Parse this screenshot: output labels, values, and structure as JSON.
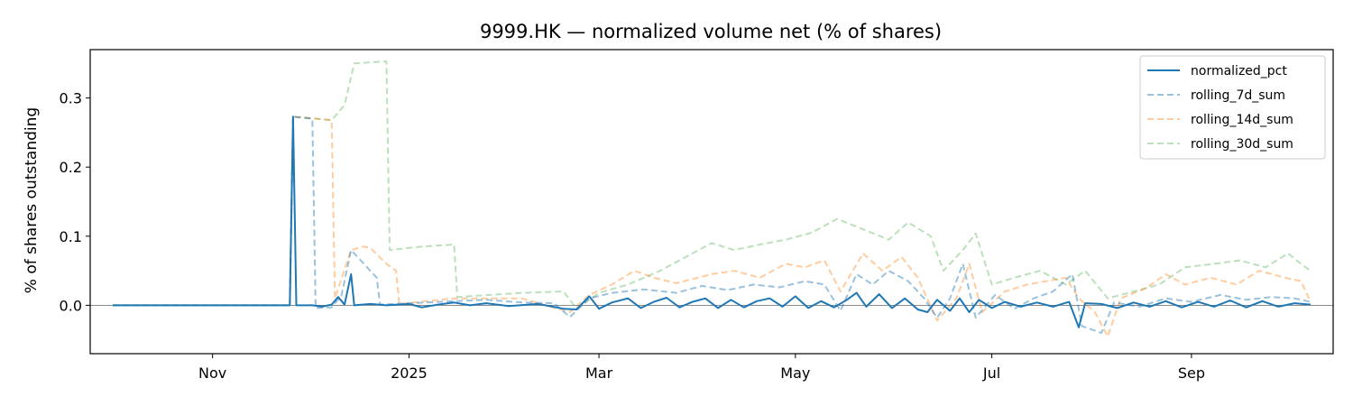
{
  "chart_data": {
    "type": "line",
    "title": "9999.HK — normalized volume net (% of shares)",
    "xlabel": "",
    "ylabel": "% of shares outstanding",
    "x_range": [
      "2024-09-24",
      "2025-10-15"
    ],
    "ylim": [
      -0.07,
      0.37
    ],
    "x_ticks": [
      {
        "label": "Nov",
        "date": "2024-11-01"
      },
      {
        "label": "2025",
        "date": "2025-01-01"
      },
      {
        "label": "Mar",
        "date": "2025-03-01"
      },
      {
        "label": "May",
        "date": "2025-05-01"
      },
      {
        "label": "Jul",
        "date": "2025-07-01"
      },
      {
        "label": "Sep",
        "date": "2025-09-01"
      }
    ],
    "y_ticks": [
      "0.0",
      "0.1",
      "0.2",
      "0.3"
    ],
    "zero_line": true,
    "grid": false,
    "legend_position": "top-right",
    "series": [
      {
        "name": "normalized_pct",
        "color": "#1f77b4",
        "style": "solid",
        "opacity": 1,
        "points": [
          [
            "2024-10-01",
            0
          ],
          [
            "2024-11-25",
            0
          ],
          [
            "2024-11-26",
            0.273
          ],
          [
            "2024-11-27",
            0
          ],
          [
            "2024-12-02",
            0
          ],
          [
            "2024-12-05",
            -0.002
          ],
          [
            "2024-12-08",
            0.001
          ],
          [
            "2024-12-10",
            0.012
          ],
          [
            "2024-12-12",
            0.001
          ],
          [
            "2024-12-14",
            0.045
          ],
          [
            "2024-12-15",
            0
          ],
          [
            "2024-12-20",
            0.002
          ],
          [
            "2024-12-25",
            0
          ],
          [
            "2025-01-01",
            0.002
          ],
          [
            "2025-01-05",
            -0.003
          ],
          [
            "2025-01-10",
            0.001
          ],
          [
            "2025-01-15",
            0.004
          ],
          [
            "2025-01-20",
            0
          ],
          [
            "2025-01-25",
            0.003
          ],
          [
            "2025-02-01",
            -0.001
          ],
          [
            "2025-02-10",
            0.002
          ],
          [
            "2025-02-18",
            -0.005
          ],
          [
            "2025-02-22",
            -0.006
          ],
          [
            "2025-02-26",
            0.013
          ],
          [
            "2025-03-01",
            -0.005
          ],
          [
            "2025-03-05",
            0.004
          ],
          [
            "2025-03-10",
            0.01
          ],
          [
            "2025-03-14",
            -0.004
          ],
          [
            "2025-03-18",
            0.005
          ],
          [
            "2025-03-22",
            0.011
          ],
          [
            "2025-03-26",
            -0.003
          ],
          [
            "2025-03-30",
            0.005
          ],
          [
            "2025-04-03",
            0.01
          ],
          [
            "2025-04-07",
            -0.004
          ],
          [
            "2025-04-11",
            0.008
          ],
          [
            "2025-04-15",
            -0.003
          ],
          [
            "2025-04-19",
            0.006
          ],
          [
            "2025-04-23",
            0.01
          ],
          [
            "2025-04-27",
            -0.002
          ],
          [
            "2025-05-01",
            0.013
          ],
          [
            "2025-05-05",
            -0.004
          ],
          [
            "2025-05-09",
            0.006
          ],
          [
            "2025-05-13",
            -0.003
          ],
          [
            "2025-05-17",
            0.008
          ],
          [
            "2025-05-20",
            0.018
          ],
          [
            "2025-05-23",
            -0.002
          ],
          [
            "2025-05-27",
            0.016
          ],
          [
            "2025-05-31",
            -0.004
          ],
          [
            "2025-06-04",
            0.01
          ],
          [
            "2025-06-08",
            -0.006
          ],
          [
            "2025-06-11",
            -0.01
          ],
          [
            "2025-06-14",
            0.008
          ],
          [
            "2025-06-18",
            -0.008
          ],
          [
            "2025-06-21",
            0.01
          ],
          [
            "2025-06-24",
            -0.01
          ],
          [
            "2025-06-27",
            0.008
          ],
          [
            "2025-07-01",
            -0.004
          ],
          [
            "2025-07-05",
            0.005
          ],
          [
            "2025-07-10",
            -0.002
          ],
          [
            "2025-07-15",
            0.004
          ],
          [
            "2025-07-20",
            -0.002
          ],
          [
            "2025-07-25",
            0.005
          ],
          [
            "2025-07-28",
            -0.032
          ],
          [
            "2025-07-30",
            0.003
          ],
          [
            "2025-08-04",
            0.002
          ],
          [
            "2025-08-09",
            -0.004
          ],
          [
            "2025-08-14",
            0.004
          ],
          [
            "2025-08-19",
            -0.002
          ],
          [
            "2025-08-24",
            0.006
          ],
          [
            "2025-08-29",
            -0.003
          ],
          [
            "2025-09-03",
            0.005
          ],
          [
            "2025-09-08",
            -0.002
          ],
          [
            "2025-09-13",
            0.007
          ],
          [
            "2025-09-18",
            -0.003
          ],
          [
            "2025-09-23",
            0.006
          ],
          [
            "2025-09-28",
            -0.002
          ],
          [
            "2025-10-03",
            0.003
          ],
          [
            "2025-10-08",
            0.001
          ]
        ]
      },
      {
        "name": "rolling_7d_sum",
        "color": "#1f77b4",
        "style": "dashed",
        "opacity": 0.45,
        "points": [
          [
            "2024-10-01",
            0
          ],
          [
            "2024-11-25",
            0
          ],
          [
            "2024-11-26",
            0.273
          ],
          [
            "2024-12-02",
            0.27
          ],
          [
            "2024-12-03",
            -0.004
          ],
          [
            "2024-12-08",
            -0.003
          ],
          [
            "2024-12-11",
            0.014
          ],
          [
            "2024-12-14",
            0.08
          ],
          [
            "2024-12-18",
            0.06
          ],
          [
            "2024-12-22",
            0.04
          ],
          [
            "2024-12-23",
            0.001
          ],
          [
            "2025-01-10",
            0.005
          ],
          [
            "2025-01-25",
            0.008
          ],
          [
            "2025-02-05",
            0.004
          ],
          [
            "2025-02-15",
            0.003
          ],
          [
            "2025-02-20",
            -0.017
          ],
          [
            "2025-02-26",
            0.01
          ],
          [
            "2025-03-05",
            0.018
          ],
          [
            "2025-03-15",
            0.023
          ],
          [
            "2025-03-25",
            0.018
          ],
          [
            "2025-04-02",
            0.028
          ],
          [
            "2025-04-10",
            0.022
          ],
          [
            "2025-04-18",
            0.03
          ],
          [
            "2025-04-26",
            0.026
          ],
          [
            "2025-05-04",
            0.035
          ],
          [
            "2025-05-10",
            0.03
          ],
          [
            "2025-05-15",
            -0.008
          ],
          [
            "2025-05-20",
            0.045
          ],
          [
            "2025-05-25",
            0.03
          ],
          [
            "2025-05-30",
            0.05
          ],
          [
            "2025-06-05",
            0.035
          ],
          [
            "2025-06-10",
            0.01
          ],
          [
            "2025-06-14",
            -0.018
          ],
          [
            "2025-06-18",
            0.01
          ],
          [
            "2025-06-22",
            0.06
          ],
          [
            "2025-06-26",
            -0.018
          ],
          [
            "2025-07-02",
            0.015
          ],
          [
            "2025-07-08",
            -0.005
          ],
          [
            "2025-07-14",
            0.01
          ],
          [
            "2025-07-20",
            0.02
          ],
          [
            "2025-07-26",
            0.045
          ],
          [
            "2025-07-29",
            -0.03
          ],
          [
            "2025-08-04",
            -0.04
          ],
          [
            "2025-08-08",
            0.004
          ],
          [
            "2025-08-16",
            -0.002
          ],
          [
            "2025-08-24",
            0.01
          ],
          [
            "2025-09-01",
            0.005
          ],
          [
            "2025-09-10",
            0.015
          ],
          [
            "2025-09-18",
            0.008
          ],
          [
            "2025-09-26",
            0.012
          ],
          [
            "2025-10-03",
            0.01
          ],
          [
            "2025-10-08",
            0.005
          ]
        ]
      },
      {
        "name": "rolling_14d_sum",
        "color": "#ff7f0e",
        "style": "dashed",
        "opacity": 0.4,
        "points": [
          [
            "2024-10-01",
            0
          ],
          [
            "2024-11-25",
            0
          ],
          [
            "2024-11-26",
            0.273
          ],
          [
            "2024-12-08",
            0.268
          ],
          [
            "2024-12-09",
            0.01
          ],
          [
            "2024-12-14",
            0.08
          ],
          [
            "2024-12-18",
            0.085
          ],
          [
            "2024-12-20",
            0.083
          ],
          [
            "2024-12-25",
            0.06
          ],
          [
            "2024-12-28",
            0.05
          ],
          [
            "2024-12-29",
            0.002
          ],
          [
            "2025-01-15",
            0.01
          ],
          [
            "2025-02-05",
            0.01
          ],
          [
            "2025-02-20",
            -0.01
          ],
          [
            "2025-02-26",
            0.015
          ],
          [
            "2025-03-05",
            0.03
          ],
          [
            "2025-03-12",
            0.05
          ],
          [
            "2025-03-18",
            0.04
          ],
          [
            "2025-03-25",
            0.032
          ],
          [
            "2025-04-05",
            0.045
          ],
          [
            "2025-04-12",
            0.05
          ],
          [
            "2025-04-20",
            0.04
          ],
          [
            "2025-04-28",
            0.06
          ],
          [
            "2025-05-04",
            0.055
          ],
          [
            "2025-05-10",
            0.065
          ],
          [
            "2025-05-15",
            0.02
          ],
          [
            "2025-05-22",
            0.075
          ],
          [
            "2025-05-28",
            0.05
          ],
          [
            "2025-06-03",
            0.07
          ],
          [
            "2025-06-08",
            0.04
          ],
          [
            "2025-06-14",
            -0.022
          ],
          [
            "2025-06-20",
            0.01
          ],
          [
            "2025-06-24",
            0.06
          ],
          [
            "2025-06-28",
            -0.01
          ],
          [
            "2025-07-05",
            0.02
          ],
          [
            "2025-07-12",
            0.03
          ],
          [
            "2025-07-18",
            0.035
          ],
          [
            "2025-07-24",
            0.04
          ],
          [
            "2025-07-28",
            0.01
          ],
          [
            "2025-08-02",
            -0.01
          ],
          [
            "2025-08-06",
            -0.045
          ],
          [
            "2025-08-10",
            0.01
          ],
          [
            "2025-08-18",
            0.025
          ],
          [
            "2025-08-24",
            0.045
          ],
          [
            "2025-08-30",
            0.03
          ],
          [
            "2025-09-07",
            0.04
          ],
          [
            "2025-09-15",
            0.03
          ],
          [
            "2025-09-22",
            0.05
          ],
          [
            "2025-09-30",
            0.04
          ],
          [
            "2025-10-05",
            0.035
          ],
          [
            "2025-10-08",
            0.005
          ]
        ]
      },
      {
        "name": "rolling_30d_sum",
        "color": "#2ca02c",
        "style": "dashed",
        "opacity": 0.32,
        "points": [
          [
            "2024-10-01",
            0
          ],
          [
            "2024-11-25",
            0
          ],
          [
            "2024-11-26",
            0.273
          ],
          [
            "2024-12-08",
            0.268
          ],
          [
            "2024-12-12",
            0.29
          ],
          [
            "2024-12-15",
            0.35
          ],
          [
            "2024-12-25",
            0.353
          ],
          [
            "2024-12-26",
            0.08
          ],
          [
            "2025-01-05",
            0.085
          ],
          [
            "2025-01-15",
            0.088
          ],
          [
            "2025-01-16",
            0.012
          ],
          [
            "2025-02-05",
            0.018
          ],
          [
            "2025-02-18",
            0.02
          ],
          [
            "2025-02-22",
            -0.005
          ],
          [
            "2025-03-01",
            0.018
          ],
          [
            "2025-03-10",
            0.03
          ],
          [
            "2025-03-20",
            0.05
          ],
          [
            "2025-03-28",
            0.07
          ],
          [
            "2025-04-05",
            0.09
          ],
          [
            "2025-04-12",
            0.08
          ],
          [
            "2025-04-20",
            0.088
          ],
          [
            "2025-04-28",
            0.095
          ],
          [
            "2025-05-06",
            0.105
          ],
          [
            "2025-05-14",
            0.125
          ],
          [
            "2025-05-22",
            0.11
          ],
          [
            "2025-05-30",
            0.095
          ],
          [
            "2025-06-05",
            0.12
          ],
          [
            "2025-06-12",
            0.1
          ],
          [
            "2025-06-16",
            0.05
          ],
          [
            "2025-06-22",
            0.08
          ],
          [
            "2025-06-26",
            0.104
          ],
          [
            "2025-07-01",
            0.03
          ],
          [
            "2025-07-08",
            0.04
          ],
          [
            "2025-07-16",
            0.05
          ],
          [
            "2025-07-24",
            0.03
          ],
          [
            "2025-07-30",
            0.05
          ],
          [
            "2025-08-06",
            0.01
          ],
          [
            "2025-08-14",
            0.02
          ],
          [
            "2025-08-22",
            0.03
          ],
          [
            "2025-08-30",
            0.055
          ],
          [
            "2025-09-08",
            0.06
          ],
          [
            "2025-09-16",
            0.065
          ],
          [
            "2025-09-24",
            0.055
          ],
          [
            "2025-10-01",
            0.075
          ],
          [
            "2025-10-05",
            0.06
          ],
          [
            "2025-10-08",
            0.05
          ]
        ]
      }
    ]
  }
}
